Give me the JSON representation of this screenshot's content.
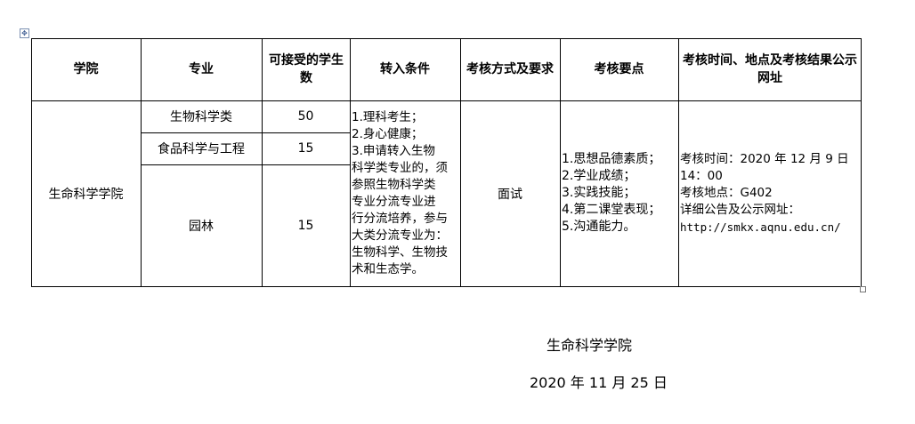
{
  "table": {
    "headers": [
      "学院",
      "专业",
      "可接受的学生数",
      "转入条件",
      "考核方式及要求",
      "考核要点",
      "考核时间、地点及考核结果公示网址"
    ],
    "college": "生命科学学院",
    "majors": [
      {
        "name": "生物科学类",
        "count": "50"
      },
      {
        "name": "食品科学与工程",
        "count": "15"
      },
      {
        "name": "园林",
        "count": "15"
      }
    ],
    "conditions": [
      "1.理科考生；",
      "2.身心健康；",
      "3.申请转入生物",
      "科学类专业的，须",
      "参照生物科学类",
      "专业分流专业进",
      "行分流培养，参与",
      "大类分流专业为：",
      "生物科学、生物技",
      "术和生态学。"
    ],
    "method": "面试",
    "points": [
      "1.思想品德素质；",
      "2.学业成绩；",
      "3.实践技能；",
      "4.第二课堂表现；",
      "5.沟通能力。"
    ],
    "info": [
      "考核时间：2020 年 12 月 9 日",
      "14：00",
      "考核地点：G402",
      "详细公告及公示网址：",
      "http://smkx.aqnu.edu.cn/"
    ]
  },
  "footer": {
    "org": "生命科学学院",
    "date": "2020 年 11 月 25 日"
  }
}
